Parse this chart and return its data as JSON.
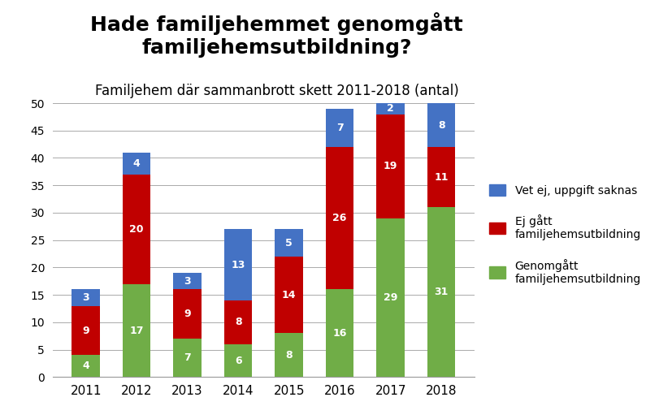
{
  "title": "Hade familjehemmet genomgått\nfamiljehemsutbildning?",
  "subtitle": "Familjehem där sammanbrott skett 2011-2018 (antal)",
  "years": [
    "2011",
    "2012",
    "2013",
    "2014",
    "2015",
    "2016",
    "2017",
    "2018"
  ],
  "green": [
    4,
    17,
    7,
    6,
    8,
    16,
    29,
    31
  ],
  "red": [
    9,
    20,
    9,
    8,
    14,
    26,
    19,
    11
  ],
  "blue": [
    3,
    4,
    3,
    13,
    5,
    7,
    2,
    8
  ],
  "color_green": "#70AD47",
  "color_red": "#C00000",
  "color_blue": "#4472C4",
  "legend_green": "Genomgått\nfamiljehemsutbildning",
  "legend_red": "Ej gått\nfamiljehemsutbildning",
  "legend_blue": "Vet ej, uppgift saknas",
  "ylim": [
    0,
    52
  ],
  "yticks": [
    0,
    5,
    10,
    15,
    20,
    25,
    30,
    35,
    40,
    45,
    50
  ],
  "background_color": "#FFFFFF",
  "title_fontsize": 18,
  "subtitle_fontsize": 12,
  "label_fontsize": 9,
  "legend_fontsize": 10
}
